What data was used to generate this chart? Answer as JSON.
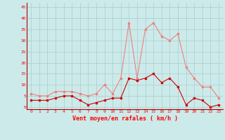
{
  "hours": [
    0,
    1,
    2,
    3,
    4,
    5,
    6,
    7,
    8,
    9,
    10,
    11,
    12,
    13,
    14,
    15,
    16,
    17,
    18,
    19,
    20,
    21,
    22,
    23
  ],
  "wind_mean": [
    3,
    3,
    3,
    4,
    5,
    5,
    3,
    1,
    2,
    3,
    4,
    4,
    13,
    12,
    13,
    15,
    11,
    13,
    9,
    1,
    4,
    3,
    0,
    1
  ],
  "wind_gust": [
    6,
    5,
    5,
    7,
    7,
    7,
    6,
    5,
    6,
    10,
    6,
    13,
    38,
    13,
    35,
    38,
    32,
    30,
    33,
    18,
    13,
    9,
    9,
    4
  ],
  "xlabel": "Vent moyen/en rafales ( km/h )",
  "ylim_min": -1,
  "ylim_max": 47,
  "yticks": [
    0,
    5,
    10,
    15,
    20,
    25,
    30,
    35,
    40,
    45
  ],
  "bg_color": "#cceaea",
  "mean_color": "#cc0000",
  "gust_color": "#f08080",
  "grid_color": "#aacccc"
}
